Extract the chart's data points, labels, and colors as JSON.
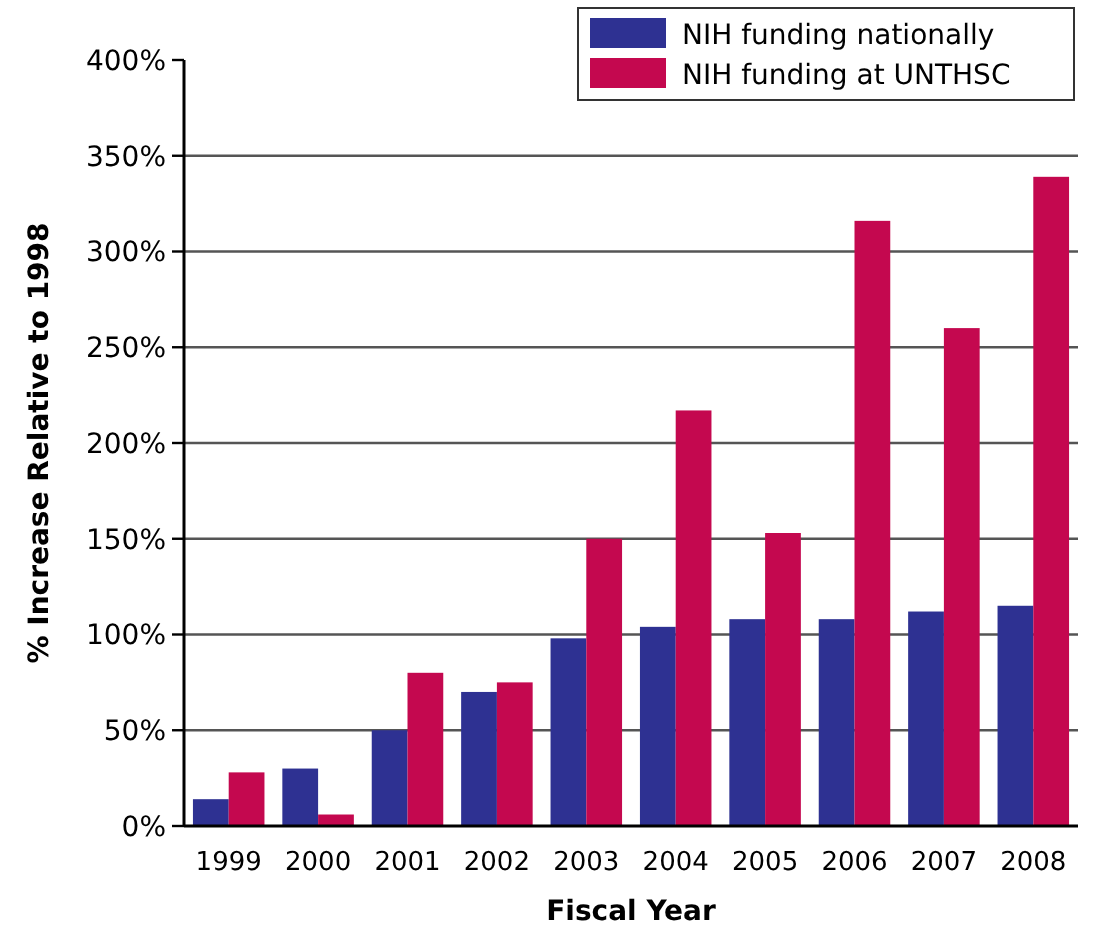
{
  "chart_data": {
    "type": "bar",
    "xlabel": "Fiscal Year",
    "ylabel": "% Increase Relative to 1998",
    "categories": [
      "1999",
      "2000",
      "2001",
      "2002",
      "2003",
      "2004",
      "2005",
      "2006",
      "2007",
      "2008"
    ],
    "series": [
      {
        "name": "NIH funding nationally",
        "color": "#2e3192",
        "values": [
          14,
          30,
          50,
          70,
          98,
          104,
          108,
          108,
          112,
          115
        ]
      },
      {
        "name": "NIH funding at UNTHSC",
        "color": "#c4084f",
        "values": [
          28,
          6,
          80,
          75,
          150,
          217,
          153,
          316,
          260,
          339
        ]
      }
    ],
    "ylim": [
      0,
      400
    ],
    "yticks": [
      {
        "value": 0,
        "label": "0%"
      },
      {
        "value": 50,
        "label": "50%"
      },
      {
        "value": 100,
        "label": "100%"
      },
      {
        "value": 150,
        "label": "150%"
      },
      {
        "value": 200,
        "label": "200%"
      },
      {
        "value": 250,
        "label": "250%"
      },
      {
        "value": 300,
        "label": "300%"
      },
      {
        "value": 350,
        "label": "350%"
      },
      {
        "value": 400,
        "label": "400%"
      }
    ],
    "grid": "y",
    "legend": "top right"
  }
}
